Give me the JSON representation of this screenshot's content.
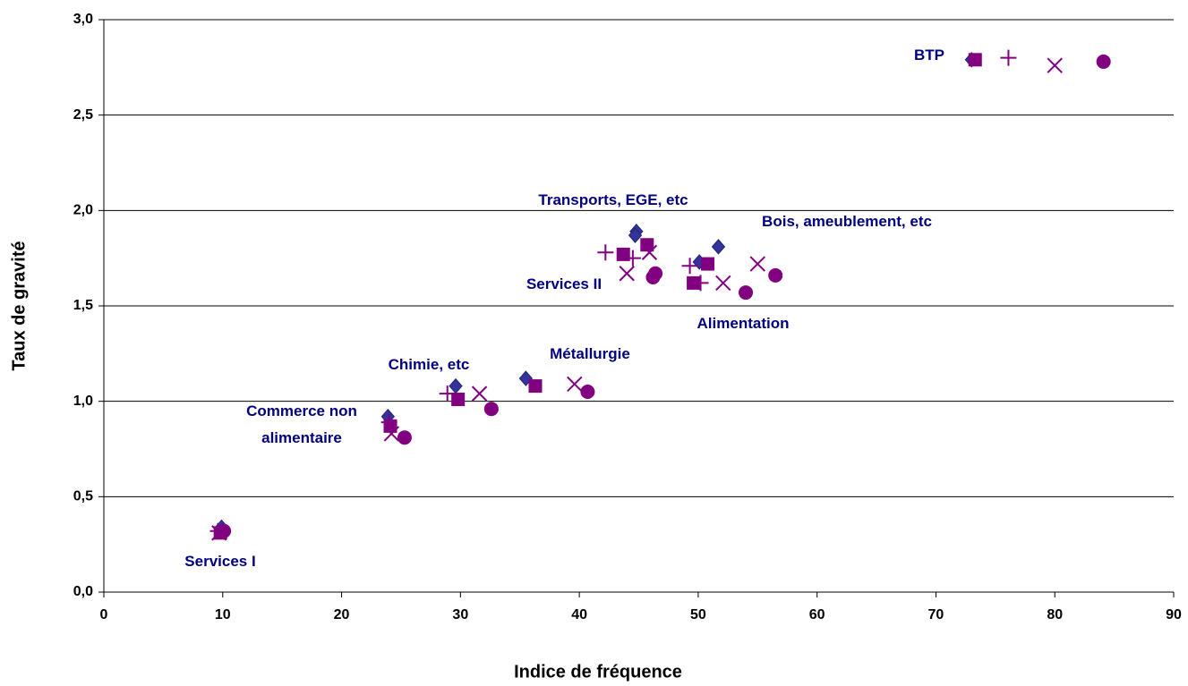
{
  "chart_data": {
    "type": "scatter",
    "xlabel": "Indice de fréquence",
    "ylabel": "Taux de gravité",
    "xlim": [
      0,
      90
    ],
    "xticks": [
      0,
      10,
      20,
      30,
      40,
      50,
      60,
      70,
      80,
      90
    ],
    "ylim": [
      0,
      3
    ],
    "yticks": [
      {
        "value": 0,
        "label": "0,0"
      },
      {
        "value": 0.5,
        "label": "0,5"
      },
      {
        "value": 1,
        "label": "1,0"
      },
      {
        "value": 1.5,
        "label": "1,5"
      },
      {
        "value": 2,
        "label": "2,0"
      },
      {
        "value": 2.5,
        "label": "2,5"
      },
      {
        "value": 3,
        "label": "3,0"
      }
    ],
    "grid": true,
    "series": [
      {
        "marker": "diamond",
        "color": "#333399",
        "x": [
          9.9,
          23.9,
          29.6,
          35.5,
          44.8,
          44.7,
          50.1,
          51.7,
          73.0
        ],
        "values": [
          0.34,
          0.92,
          1.08,
          1.12,
          1.89,
          1.87,
          1.73,
          1.81,
          2.79
        ]
      },
      {
        "marker": "square",
        "color": "#800080",
        "x": [
          9.8,
          24.1,
          29.8,
          36.3,
          43.7,
          45.7,
          49.6,
          50.8,
          73.3
        ],
        "values": [
          0.31,
          0.87,
          1.01,
          1.08,
          1.77,
          1.82,
          1.62,
          1.72,
          2.79
        ]
      },
      {
        "marker": "plus",
        "color": "#800080",
        "x": [
          9.6,
          24.0,
          28.9,
          42.2,
          44.5,
          49.3,
          50.2,
          76.1
        ],
        "values": [
          0.32,
          0.89,
          1.04,
          1.78,
          1.75,
          1.71,
          1.62,
          2.8
        ]
      },
      {
        "marker": "x",
        "color": "#800080",
        "x": [
          9.7,
          24.2,
          31.6,
          39.6,
          44.0,
          45.9,
          52.1,
          55.0,
          80.0
        ],
        "values": [
          0.31,
          0.83,
          1.04,
          1.09,
          1.67,
          1.78,
          1.62,
          1.72,
          2.76
        ]
      },
      {
        "marker": "circle",
        "color": "#800080",
        "x": [
          10.1,
          25.3,
          32.6,
          40.7,
          46.2,
          46.4,
          54.0,
          56.5,
          84.1
        ],
        "values": [
          0.32,
          0.81,
          0.96,
          1.05,
          1.65,
          1.67,
          1.57,
          1.66,
          2.78
        ]
      }
    ],
    "annotations": [
      "BTP",
      "Transports, EGE, etc",
      "Bois, ameublement, etc",
      "Services II",
      "Alimentation",
      "Métallurgie",
      "Chimie, etc",
      "Commerce non alimentaire",
      "Services I"
    ]
  }
}
